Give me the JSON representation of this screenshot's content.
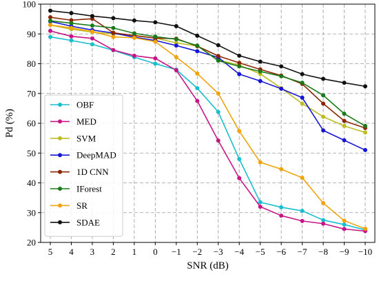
{
  "chart_data": {
    "type": "line",
    "xlabel": "SNR (dB)",
    "ylabel": "Pd (%)",
    "x": [
      5,
      4,
      3,
      2,
      1,
      0,
      -1,
      -2,
      -3,
      -4,
      -5,
      -6,
      -7,
      -8,
      -9,
      -10
    ],
    "x_tick_labels": [
      "5",
      "4",
      "3",
      "2",
      "1",
      "0",
      "−1",
      "−2",
      "−3",
      "−4",
      "−5",
      "−6",
      "−7",
      "−8",
      "−9",
      "−10"
    ],
    "x_reversed": true,
    "ylim": [
      20,
      100
    ],
    "yticks": [
      20,
      30,
      40,
      50,
      60,
      70,
      80,
      90,
      100
    ],
    "grid": true,
    "legend_position": "lower-left",
    "series": [
      {
        "name": "OBF",
        "color": "#17becf",
        "values": [
          89.0,
          87.8,
          86.5,
          84.5,
          82.2,
          80.0,
          78.0,
          71.8,
          63.8,
          48.0,
          33.5,
          31.8,
          30.6,
          27.5,
          26.0,
          24.2
        ]
      },
      {
        "name": "MED",
        "color": "#c71585",
        "values": [
          91.0,
          89.2,
          88.5,
          84.6,
          82.7,
          81.8,
          77.8,
          67.5,
          54.2,
          41.6,
          32.0,
          29.0,
          27.2,
          26.3,
          24.5,
          23.8
        ]
      },
      {
        "name": "SVM",
        "color": "#bcbd22",
        "values": [
          93.0,
          91.6,
          90.6,
          90.0,
          89.5,
          88.6,
          87.0,
          85.9,
          81.3,
          79.5,
          76.6,
          71.8,
          66.6,
          62.2,
          59.1,
          56.9
        ]
      },
      {
        "name": "DeepMAD",
        "color": "#1515d4",
        "values": [
          94.2,
          92.6,
          91.3,
          90.3,
          88.9,
          87.8,
          86.1,
          84.2,
          82.1,
          76.5,
          74.2,
          71.6,
          68.6,
          57.6,
          54.3,
          51.0
        ]
      },
      {
        "name": "1D CNN",
        "color": "#8b2500",
        "values": [
          95.6,
          94.6,
          95.1,
          90.4,
          89.4,
          88.6,
          88.4,
          85.9,
          82.6,
          80.3,
          78.1,
          76.0,
          73.2,
          66.6,
          60.8,
          58.4
        ]
      },
      {
        "name": "IForest",
        "color": "#1a7a1a",
        "values": [
          94.4,
          93.6,
          92.8,
          92.0,
          90.2,
          89.1,
          88.2,
          86.1,
          81.0,
          79.1,
          77.4,
          75.8,
          73.6,
          69.4,
          63.2,
          59.1
        ]
      },
      {
        "name": "SR",
        "color": "#f0a30a",
        "values": [
          93.0,
          92.0,
          90.8,
          89.0,
          88.7,
          87.4,
          82.2,
          76.7,
          70.0,
          57.4,
          46.9,
          44.6,
          41.7,
          33.2,
          27.3,
          24.6
        ]
      },
      {
        "name": "SDAE",
        "color": "#111111",
        "values": [
          97.8,
          97.0,
          96.0,
          95.3,
          94.5,
          93.9,
          92.6,
          89.4,
          86.2,
          82.7,
          80.7,
          79.1,
          76.5,
          74.9,
          73.6,
          72.4
        ]
      }
    ]
  }
}
